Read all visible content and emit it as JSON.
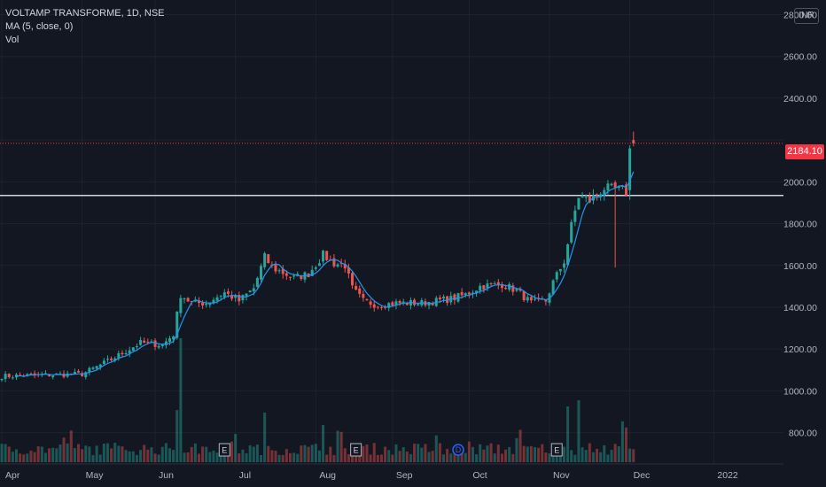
{
  "legend": {
    "symbol": "VOLTAMP TRANSFORME, 1D, NSE",
    "ma": "MA (5, close, 0)",
    "vol": "Vol"
  },
  "currency": "INR",
  "last_price_label": "2184.10",
  "colors": {
    "background": "#131722",
    "up": "#26a69a",
    "down": "#ef5350",
    "ma": "#2196f3",
    "grid": "#1e222d",
    "hline": "#d1d4dc",
    "price_line": "#f23645"
  },
  "chart_data": {
    "type": "candlestick",
    "y_range": [
      650,
      2870
    ],
    "yticks": [
      {
        "value": 800,
        "label": "800.00"
      },
      {
        "value": 1000,
        "label": "1000.00"
      },
      {
        "value": 1200,
        "label": "1200.00"
      },
      {
        "value": 1400,
        "label": "1400.00"
      },
      {
        "value": 1600,
        "label": "1600.00"
      },
      {
        "value": 1800,
        "label": "1800.00"
      },
      {
        "value": 2000,
        "label": "2000.00"
      },
      {
        "value": 2200,
        "label": "2200.00"
      },
      {
        "value": 2400,
        "label": "2400.00"
      },
      {
        "value": 2600,
        "label": "2600.00"
      },
      {
        "value": 2800,
        "label": "2800.00"
      }
    ],
    "xticks": [
      {
        "index": 0,
        "label": "Apr"
      },
      {
        "index": 22,
        "label": "May"
      },
      {
        "index": 42,
        "label": "Jun"
      },
      {
        "index": 64,
        "label": "Jul"
      },
      {
        "index": 86,
        "label": "Aug"
      },
      {
        "index": 107,
        "label": "Sep"
      },
      {
        "index": 128,
        "label": "Oct"
      },
      {
        "index": 150,
        "label": "Nov"
      },
      {
        "index": 172,
        "label": "Dec"
      },
      {
        "index": 195,
        "label": "2022"
      }
    ],
    "waypoints": [
      [
        0,
        1070
      ],
      [
        10,
        1075
      ],
      [
        22,
        1080
      ],
      [
        30,
        1150
      ],
      [
        38,
        1230
      ],
      [
        44,
        1220
      ],
      [
        47,
        1270
      ],
      [
        49,
        1460
      ],
      [
        52,
        1420
      ],
      [
        56,
        1420
      ],
      [
        61,
        1470
      ],
      [
        65,
        1430
      ],
      [
        69,
        1490
      ],
      [
        72,
        1640
      ],
      [
        74,
        1590
      ],
      [
        80,
        1540
      ],
      [
        84,
        1560
      ],
      [
        88,
        1650
      ],
      [
        91,
        1610
      ],
      [
        94,
        1600
      ],
      [
        96,
        1490
      ],
      [
        99,
        1430
      ],
      [
        103,
        1410
      ],
      [
        108,
        1420
      ],
      [
        115,
        1420
      ],
      [
        123,
        1440
      ],
      [
        127,
        1460
      ],
      [
        131,
        1500
      ],
      [
        137,
        1510
      ],
      [
        141,
        1480
      ],
      [
        145,
        1420
      ],
      [
        149,
        1430
      ],
      [
        151,
        1520
      ],
      [
        154,
        1620
      ],
      [
        156,
        1790
      ],
      [
        158,
        1930
      ],
      [
        161,
        1910
      ],
      [
        165,
        1970
      ],
      [
        170,
        1960
      ],
      [
        172,
        1940
      ],
      [
        173,
        2184.1
      ]
    ],
    "horizontal_line": 1935,
    "last_price": 2184.1,
    "events": [
      {
        "index": 61,
        "label": "E"
      },
      {
        "index": 97,
        "label": "E"
      },
      {
        "index": 125,
        "label": "D"
      },
      {
        "index": 152,
        "label": "E"
      }
    ]
  }
}
